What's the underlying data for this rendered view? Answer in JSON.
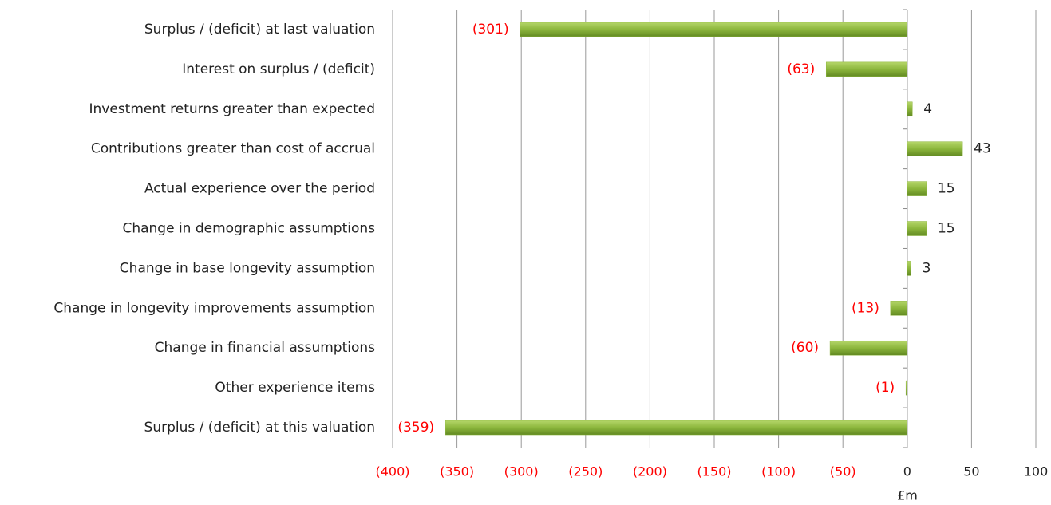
{
  "chart_data": {
    "type": "bar",
    "orientation": "horizontal",
    "categories": [
      "Surplus / (deficit) at last valuation",
      "Interest on surplus / (deficit)",
      "Investment returns greater than expected",
      "Contributions greater than cost of accrual",
      "Actual experience over the period",
      "Change in demographic assumptions",
      "Change in base longevity assumption",
      "Change in longevity improvements assumption",
      "Change in financial assumptions",
      "Other experience items",
      "Surplus / (deficit) at this valuation"
    ],
    "values": [
      -301,
      -63,
      4,
      43,
      15,
      15,
      3,
      -13,
      -60,
      -1,
      -359
    ],
    "value_labels": [
      "(301)",
      "(63)",
      "4",
      "43",
      "15",
      "15",
      "3",
      "(13)",
      "(60)",
      "(1)",
      "(359)"
    ],
    "color": "#8cb63c",
    "negative_label_color": "#ff0000",
    "xlabel": "£m",
    "xlim": [
      -400,
      100
    ],
    "xticks": [
      {
        "value": -400,
        "label": "(400)"
      },
      {
        "value": -350,
        "label": "(350)"
      },
      {
        "value": -300,
        "label": "(300)"
      },
      {
        "value": -250,
        "label": "(250)"
      },
      {
        "value": -200,
        "label": "(200)"
      },
      {
        "value": -150,
        "label": "(150)"
      },
      {
        "value": -100,
        "label": "(100)"
      },
      {
        "value": -50,
        "label": "(50)"
      },
      0,
      50,
      100
    ],
    "grid": true
  }
}
